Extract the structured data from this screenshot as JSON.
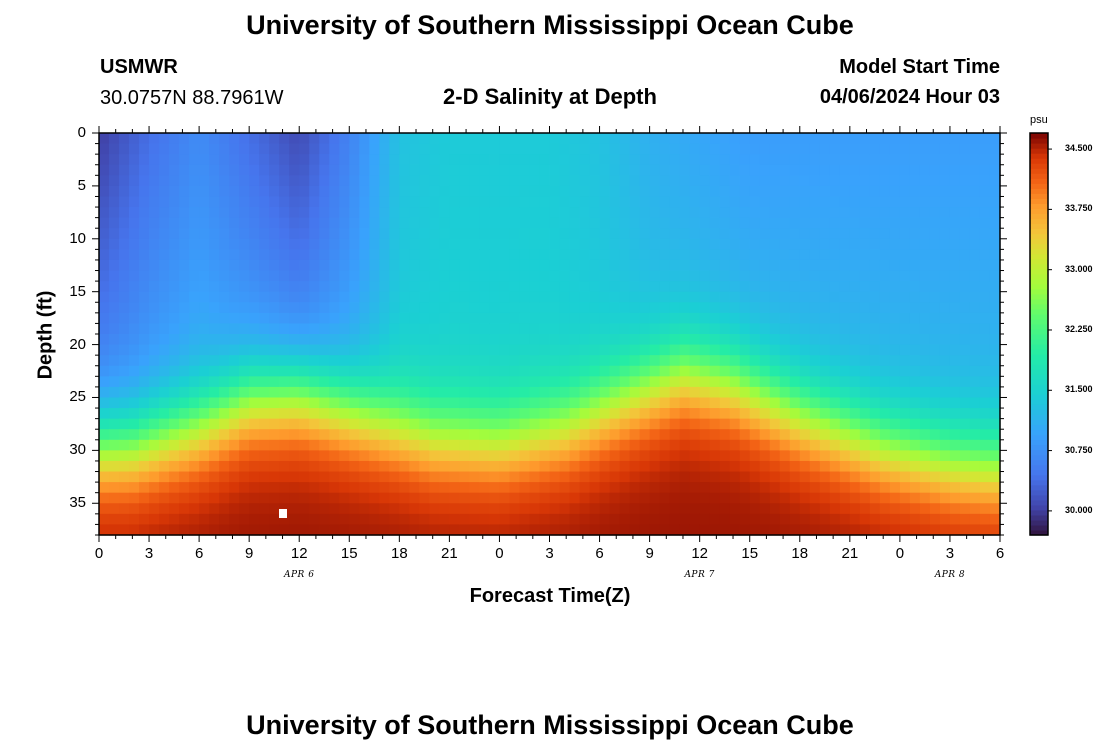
{
  "titles": {
    "main": "University of Southern Mississippi Ocean Cube",
    "footer": "University of Southern Mississippi Ocean Cube",
    "chart": "2-D Salinity at Depth"
  },
  "station": {
    "name": "USMWR",
    "coords": "30.0757N  88.7961W"
  },
  "model": {
    "label": "Model Start Time",
    "time": "04/06/2024 Hour 03"
  },
  "chart_data": {
    "type": "heatmap",
    "title": "2-D Salinity at Depth",
    "xlabel": "Forecast Time(Z)",
    "ylabel": "Depth (ft)",
    "x_tick_labels": [
      "0",
      "3",
      "6",
      "9",
      "12",
      "15",
      "18",
      "21",
      "0",
      "3",
      "6",
      "9",
      "12",
      "15",
      "18",
      "21",
      "0",
      "3",
      "6"
    ],
    "x_hours": [
      0,
      3,
      6,
      9,
      12,
      15,
      18,
      21,
      24,
      27,
      30,
      33,
      36,
      39,
      42,
      45,
      48,
      51,
      54
    ],
    "date_labels": [
      {
        "text": "APR 6",
        "hour": 12
      },
      {
        "text": "APR 7",
        "hour": 36
      },
      {
        "text": "APR 8",
        "hour": 51
      }
    ],
    "y_tick_labels": [
      "0",
      "5",
      "10",
      "15",
      "20",
      "25",
      "30",
      "35"
    ],
    "y_values": [
      0,
      5,
      10,
      15,
      20,
      25,
      30,
      35
    ],
    "xlim": [
      0,
      54
    ],
    "ylim": [
      0,
      38
    ],
    "y_inverted": true,
    "colorbar": {
      "unit": "psu",
      "range": [
        29.7,
        34.7
      ],
      "tick_labels": [
        "34.500",
        "33.750",
        "33.000",
        "32.250",
        "31.500",
        "30.750",
        "30.000"
      ],
      "tick_values": [
        34.5,
        33.75,
        33.0,
        32.25,
        31.5,
        30.75,
        30.0
      ]
    },
    "halocline_depth_ft": {
      "hours": [
        0,
        2,
        6,
        9,
        12,
        16,
        20,
        24,
        28,
        32,
        35,
        38,
        42,
        47,
        51,
        54
      ],
      "values": [
        30,
        30,
        28,
        25.5,
        25,
        27,
        29,
        29.5,
        28,
        25,
        23,
        24,
        27,
        30,
        31.5,
        32
      ]
    },
    "surface_salinity_psu": {
      "hours": [
        0,
        3,
        6,
        9,
        12,
        15,
        18,
        21,
        24,
        27,
        30,
        33,
        36,
        39,
        42,
        45,
        48,
        51,
        54
      ],
      "values": [
        30.0,
        30.4,
        30.7,
        30.4,
        30.1,
        30.6,
        31.3,
        31.4,
        31.4,
        31.4,
        31.3,
        31.1,
        31.0,
        30.9,
        30.9,
        30.9,
        30.9,
        30.9,
        30.9
      ]
    },
    "bottom_salinity_psu": 34.6
  },
  "colors": {
    "background": "#ffffff",
    "low": "#30123b",
    "mid": "#28c0e0",
    "high": "#7a0403"
  }
}
